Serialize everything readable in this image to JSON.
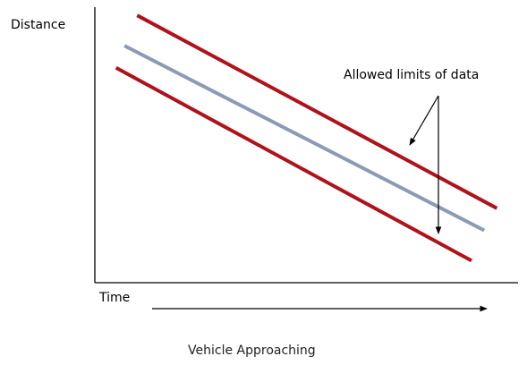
{
  "chart_data": {
    "type": "line",
    "ylabel": "Distance",
    "xlabel": "Time",
    "caption": "Vehicle Approaching",
    "annotation": "Allowed limits of data",
    "grid": false,
    "series": [
      {
        "role": "upper-limit",
        "color": "#b0121b",
        "x": [
          0.1,
          0.95
        ],
        "y": [
          0.97,
          0.27
        ]
      },
      {
        "role": "center",
        "color": "#8c9bb5",
        "x": [
          0.07,
          0.92
        ],
        "y": [
          0.86,
          0.19
        ]
      },
      {
        "role": "lower-limit",
        "color": "#b0121b",
        "x": [
          0.05,
          0.89
        ],
        "y": [
          0.78,
          0.08
        ]
      }
    ]
  }
}
